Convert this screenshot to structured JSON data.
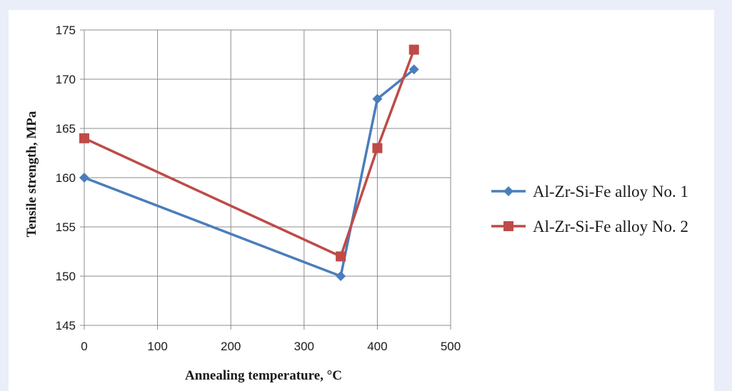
{
  "chart_data": {
    "type": "line",
    "title": "",
    "xlabel": "Annealing temperature,  °C",
    "ylabel": "Tensile strength, MPa",
    "xlim": [
      0,
      500
    ],
    "ylim": [
      145,
      175
    ],
    "x_ticks": [
      0,
      100,
      200,
      300,
      400,
      500
    ],
    "y_ticks": [
      145,
      150,
      155,
      160,
      165,
      170,
      175
    ],
    "grid": true,
    "legend_position": "right",
    "series": [
      {
        "name": "Al-Zr-Si-Fe alloy No. 1",
        "color": "#4a7ebb",
        "marker": "diamond",
        "x": [
          0,
          350,
          400,
          450
        ],
        "y": [
          160,
          150,
          168,
          171
        ]
      },
      {
        "name": "Al-Zr-Si-Fe alloy No. 2",
        "color": "#be4b48",
        "marker": "square",
        "x": [
          0,
          350,
          400,
          450
        ],
        "y": [
          164,
          152,
          163,
          173
        ]
      }
    ]
  }
}
